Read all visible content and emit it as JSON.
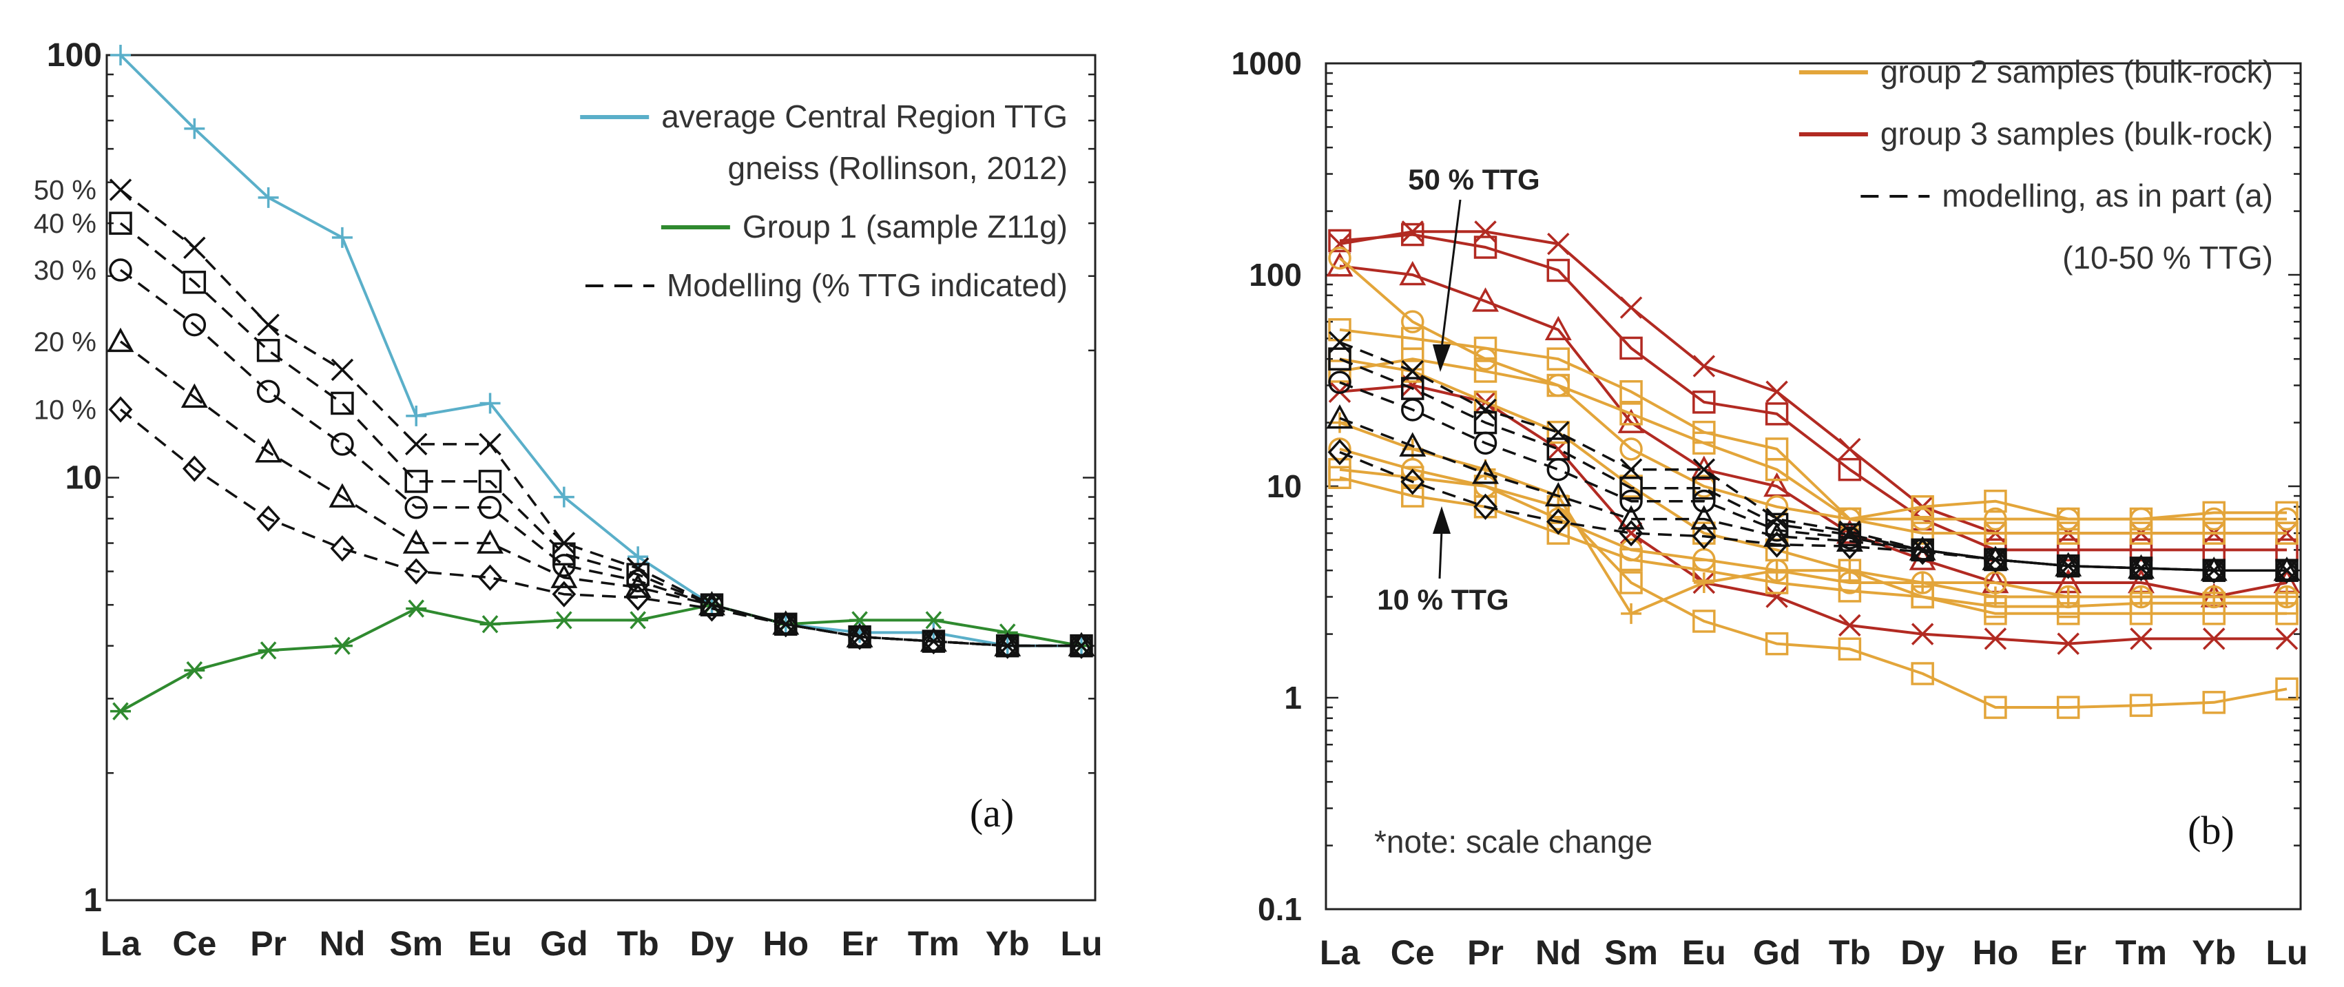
{
  "chart_data": [
    {
      "panel": "(a)",
      "type": "line",
      "y_scale": "log",
      "ylim": [
        1,
        100
      ],
      "y_ticks": [
        {
          "value": 1,
          "label": "1"
        },
        {
          "value": 10,
          "label": "10"
        },
        {
          "value": 100,
          "label": "100"
        }
      ],
      "pct_labels": [
        {
          "value": 48,
          "label": "50 %"
        },
        {
          "value": 40,
          "label": "40 %"
        },
        {
          "value": 31,
          "label": "30 %"
        },
        {
          "value": 21,
          "label": "20 %"
        },
        {
          "value": 14.5,
          "label": "10 %"
        }
      ],
      "categories": [
        "La",
        "Ce",
        "Pr",
        "Nd",
        "Sm",
        "Eu",
        "Gd",
        "Tb",
        "Dy",
        "Ho",
        "Er",
        "Tm",
        "Yb",
        "Lu"
      ],
      "legend": [
        {
          "label_lines": [
            "average Central Region TTG",
            "gneiss (Rollinson, 2012)"
          ],
          "color": "#5aafc9",
          "style": "solid"
        },
        {
          "label_lines": [
            "Group 1 (sample Z11g)"
          ],
          "color": "#2f8a2f",
          "style": "solid"
        },
        {
          "label_lines": [
            "Modelling (% TTG indicated)"
          ],
          "color": "#111111",
          "style": "dashed"
        }
      ],
      "series": [
        {
          "name": "average Central Region TTG gneiss",
          "color": "#5aafc9",
          "style": "solid",
          "marker": "plus",
          "values": [
            100,
            67,
            46,
            37,
            14,
            15,
            9,
            6.5,
            5,
            4.5,
            4.3,
            4.3,
            4,
            4
          ]
        },
        {
          "name": "Group 1 (sample Z11g)",
          "color": "#2f8a2f",
          "style": "solid",
          "marker": "asterisk",
          "values": [
            2.8,
            3.5,
            3.9,
            4.0,
            4.9,
            4.5,
            4.6,
            4.6,
            5.0,
            4.5,
            4.6,
            4.6,
            4.3,
            4.0
          ]
        },
        {
          "name": "Modelling 50 %",
          "color": "#111111",
          "style": "dashed",
          "marker": "x",
          "values": [
            48,
            35,
            23,
            18,
            12,
            12,
            7,
            6.1,
            5,
            4.5,
            4.2,
            4.1,
            4,
            4
          ]
        },
        {
          "name": "Modelling 40 %",
          "color": "#111111",
          "style": "dashed",
          "marker": "square",
          "values": [
            40,
            29,
            20,
            15,
            9.8,
            9.8,
            6.6,
            5.9,
            5,
            4.5,
            4.2,
            4.1,
            4,
            4
          ]
        },
        {
          "name": "Modelling 30 %",
          "color": "#111111",
          "style": "dashed",
          "marker": "circle",
          "values": [
            31,
            23,
            16,
            12,
            8.5,
            8.5,
            6.2,
            5.7,
            5,
            4.5,
            4.2,
            4.1,
            4,
            4
          ]
        },
        {
          "name": "Modelling 20 %",
          "color": "#111111",
          "style": "dashed",
          "marker": "triangle",
          "values": [
            21,
            15.5,
            11.5,
            9.0,
            7.0,
            7.0,
            5.8,
            5.5,
            5,
            4.5,
            4.2,
            4.1,
            4,
            4
          ]
        },
        {
          "name": "Modelling 10 %",
          "color": "#111111",
          "style": "dashed",
          "marker": "diamond",
          "values": [
            14.5,
            10.5,
            8.0,
            6.8,
            6.0,
            5.8,
            5.3,
            5.2,
            4.9,
            4.5,
            4.2,
            4.1,
            4,
            4
          ]
        }
      ]
    },
    {
      "panel": "(b)",
      "type": "line",
      "y_scale": "log",
      "ylim": [
        0.1,
        1000
      ],
      "y_ticks": [
        {
          "value": 0.1,
          "label": "0.1"
        },
        {
          "value": 1,
          "label": "1"
        },
        {
          "value": 10,
          "label": "10"
        },
        {
          "value": 100,
          "label": "100"
        },
        {
          "value": 1000,
          "label": "1000"
        }
      ],
      "categories": [
        "La",
        "Ce",
        "Pr",
        "Nd",
        "Sm",
        "Eu",
        "Gd",
        "Tb",
        "Dy",
        "Ho",
        "Er",
        "Tm",
        "Yb",
        "Lu"
      ],
      "legend": [
        {
          "label_lines": [
            "group 2 samples (bulk-rock)"
          ],
          "color": "#e3a53a",
          "style": "solid"
        },
        {
          "label_lines": [
            "group 3 samples (bulk-rock)"
          ],
          "color": "#b22a22",
          "style": "solid"
        },
        {
          "label_lines": [
            "modelling, as in part (a)",
            "(10-50 % TTG)"
          ],
          "color": "#111111",
          "style": "dashed"
        }
      ],
      "annotations": [
        {
          "text": "50 % TTG"
        },
        {
          "text": "10 % TTG"
        },
        {
          "text": "*note: scale change"
        }
      ],
      "series": [
        {
          "name": "group 3 a",
          "color": "#b22a22",
          "marker": "x",
          "values": [
            140,
            160,
            160,
            140,
            70,
            37,
            28,
            15,
            8,
            6,
            6,
            6,
            6,
            6
          ]
        },
        {
          "name": "group 3 b",
          "color": "#b22a22",
          "marker": "square",
          "values": [
            145,
            155,
            135,
            105,
            45,
            25,
            22,
            12,
            7,
            5,
            5,
            5,
            5,
            5
          ]
        },
        {
          "name": "group 3 c",
          "color": "#b22a22",
          "marker": "triangle",
          "values": [
            110,
            100,
            75,
            55,
            20,
            12,
            10,
            6,
            4.5,
            3.5,
            3.5,
            3.5,
            3,
            3.5
          ]
        },
        {
          "name": "group 3 d",
          "color": "#b22a22",
          "marker": "x",
          "values": [
            28,
            30,
            25,
            15,
            6,
            3.5,
            3,
            2.2,
            2,
            1.9,
            1.8,
            1.9,
            1.9,
            1.9
          ]
        },
        {
          "name": "group 2 a",
          "color": "#e3a53a",
          "marker": "circle",
          "values": [
            120,
            60,
            40,
            30,
            15,
            10,
            8,
            7,
            7,
            7,
            7,
            7,
            7,
            7
          ]
        },
        {
          "name": "group 2 b",
          "color": "#e3a53a",
          "marker": "square",
          "values": [
            55,
            50,
            45,
            40,
            28,
            18,
            15,
            7,
            8,
            8.5,
            7,
            7,
            7.5,
            7.5
          ]
        },
        {
          "name": "group 2 c",
          "color": "#e3a53a",
          "marker": "square",
          "values": [
            35,
            40,
            35,
            30,
            22,
            16,
            12,
            7,
            6,
            6,
            6,
            6,
            6,
            6
          ]
        },
        {
          "name": "group 2 d",
          "color": "#e3a53a",
          "marker": "square",
          "values": [
            40,
            35,
            25,
            18,
            10,
            6,
            5,
            4,
            3,
            2.7,
            2.7,
            2.8,
            2.8,
            2.8
          ]
        },
        {
          "name": "group 2 e",
          "color": "#e3a53a",
          "marker": "square",
          "values": [
            12,
            11,
            10,
            8,
            3.5,
            2.3,
            1.8,
            1.7,
            1.3,
            0.9,
            0.9,
            0.92,
            0.95,
            1.1
          ]
        },
        {
          "name": "group 2 f",
          "color": "#e3a53a",
          "marker": "plus",
          "values": [
            20,
            15,
            12,
            9,
            2.5,
            3.5,
            4,
            4,
            3.5,
            3,
            3,
            3,
            3,
            3
          ]
        },
        {
          "name": "group 2 g",
          "color": "#e3a53a",
          "marker": "circle",
          "values": [
            15,
            12,
            10,
            7,
            5,
            4.5,
            4,
            3.5,
            3.5,
            3.5,
            3,
            3,
            3,
            3
          ]
        },
        {
          "name": "group 2 h",
          "color": "#e3a53a",
          "marker": "square",
          "values": [
            11,
            9,
            8,
            6,
            4.5,
            4,
            3.5,
            3.2,
            3,
            2.5,
            2.5,
            2.5,
            2.5,
            2.5
          ]
        },
        {
          "name": "Modelling 50 %",
          "color": "#111111",
          "style": "dashed",
          "marker": "x",
          "values": [
            48,
            35,
            23,
            18,
            12,
            12,
            7,
            6.1,
            5,
            4.5,
            4.2,
            4.1,
            4,
            4
          ]
        },
        {
          "name": "Modelling 40 %",
          "color": "#111111",
          "style": "dashed",
          "marker": "square",
          "values": [
            40,
            29,
            20,
            15,
            9.8,
            9.8,
            6.6,
            5.9,
            5,
            4.5,
            4.2,
            4.1,
            4,
            4
          ]
        },
        {
          "name": "Modelling 30 %",
          "color": "#111111",
          "style": "dashed",
          "marker": "circle",
          "values": [
            31,
            23,
            16,
            12,
            8.5,
            8.5,
            6.2,
            5.7,
            5,
            4.5,
            4.2,
            4.1,
            4,
            4
          ]
        },
        {
          "name": "Modelling 20 %",
          "color": "#111111",
          "style": "dashed",
          "marker": "triangle",
          "values": [
            21,
            15.5,
            11.5,
            9.0,
            7.0,
            7.0,
            5.8,
            5.5,
            5,
            4.5,
            4.2,
            4.1,
            4,
            4
          ]
        },
        {
          "name": "Modelling 10 %",
          "color": "#111111",
          "style": "dashed",
          "marker": "diamond",
          "values": [
            14.5,
            10.5,
            8.0,
            6.8,
            6.0,
            5.8,
            5.3,
            5.2,
            4.9,
            4.5,
            4.2,
            4.1,
            4,
            4
          ]
        }
      ]
    }
  ]
}
